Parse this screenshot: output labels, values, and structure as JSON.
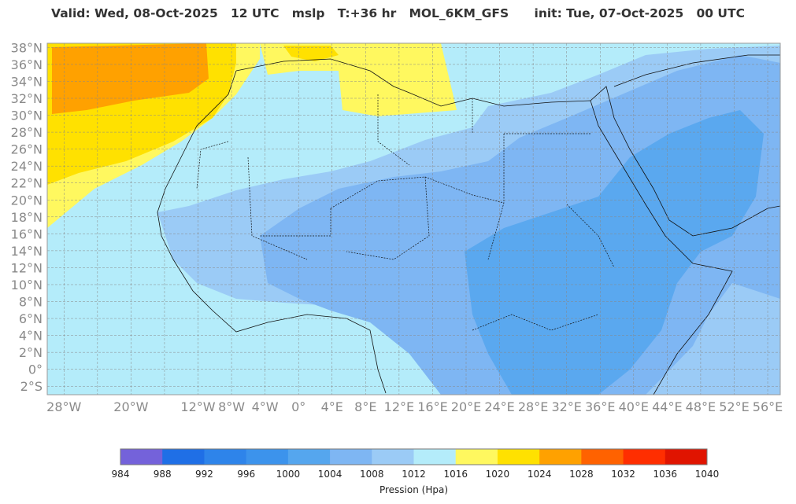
{
  "header": {
    "valid": "Valid: Wed, 08-Oct-2025",
    "hour": "12 UTC",
    "param": "mslp",
    "step": "T:+36 hr",
    "model": "MOL_6KM_GFS",
    "init": "init: Tue, 07-Oct-2025",
    "init_hour": "00 UTC"
  },
  "map": {
    "lat_labels": [
      "38°N",
      "36°N",
      "34°N",
      "32°N",
      "30°N",
      "28°N",
      "26°N",
      "24°N",
      "22°N",
      "20°N",
      "18°N",
      "16°N",
      "14°N",
      "12°N",
      "10°N",
      "8°N",
      "6°N",
      "4°N",
      "2°N",
      "0°",
      "2°S"
    ],
    "lon_labels": [
      "28°W",
      "20°W",
      "12°W",
      "8°W",
      "4°W",
      "0°",
      "4°E",
      "8°E",
      "12°E",
      "16°E",
      "20°E",
      "24°E",
      "28°E",
      "32°E",
      "36°E",
      "40°E",
      "44°E",
      "48°E",
      "52°E",
      "56°E"
    ],
    "lat_range": [
      -3,
      38.5
    ],
    "lon_range": [
      -30,
      57.5
    ]
  },
  "colorbar": {
    "title": "Pression (Hpa)",
    "ticks": [
      "984",
      "988",
      "992",
      "996",
      "1000",
      "1004",
      "1008",
      "1012",
      "1016",
      "1020",
      "1024",
      "1028",
      "1032",
      "1036",
      "1040"
    ],
    "colors": [
      "#7462da",
      "#1f6fe6",
      "#2e84ea",
      "#3c93ec",
      "#55a6ee",
      "#7eb6f3",
      "#9bcbf6",
      "#b4ecfa",
      "#fff85f",
      "#ffe100",
      "#ffa100",
      "#ff6200",
      "#ff2e00",
      "#e01400"
    ]
  }
}
